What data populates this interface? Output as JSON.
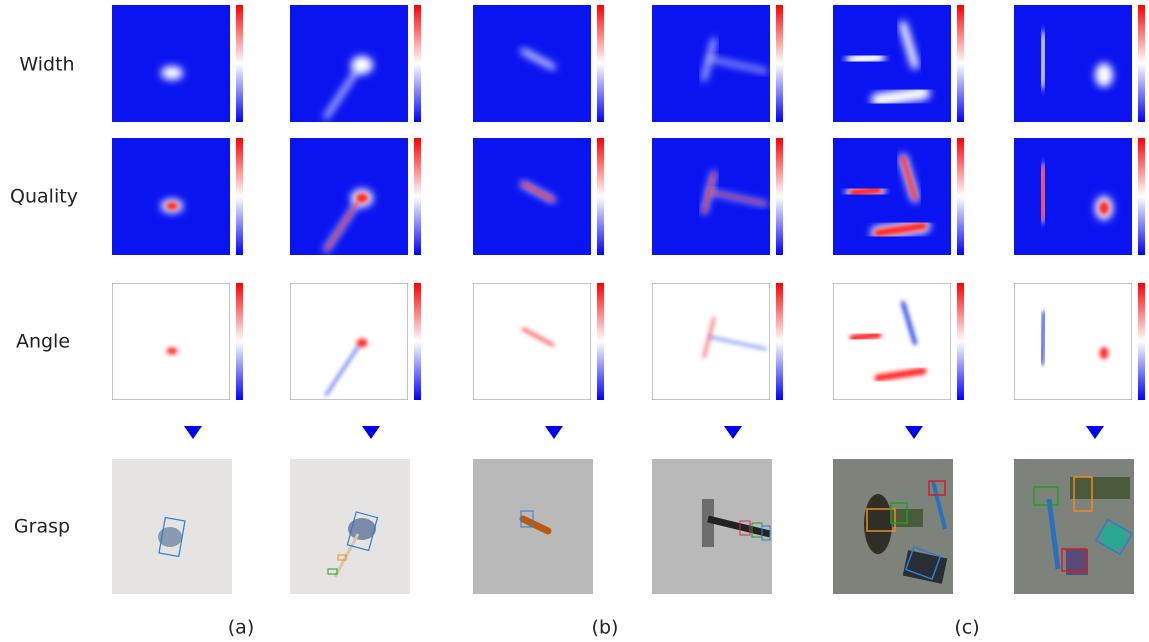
{
  "rows": [
    "Width",
    "Quality",
    "Angle",
    "Grasp"
  ],
  "panels": [
    "(a)",
    "(b)",
    "(c)"
  ]
}
